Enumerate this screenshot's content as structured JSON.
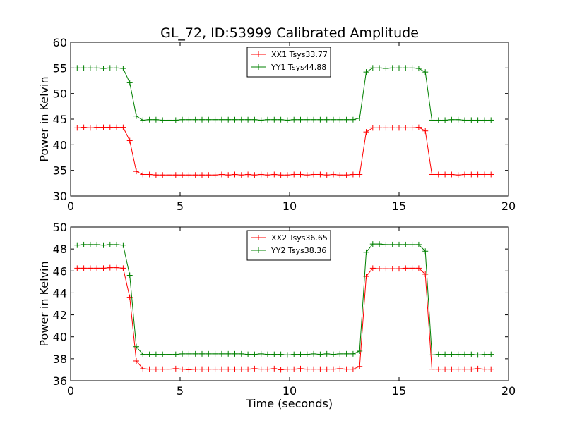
{
  "chart_data": [
    {
      "type": "line",
      "title": "GL_72, ID:53999 Calibrated Amplitude",
      "xlabel": "",
      "ylabel": "Power in Kelvin",
      "xlim": [
        0,
        20
      ],
      "ylim": [
        30,
        60
      ],
      "xticks": [
        0,
        5,
        10,
        15,
        20
      ],
      "yticks": [
        30,
        35,
        40,
        45,
        50,
        55,
        60
      ],
      "legend_position": "top-center",
      "grid": false,
      "x": [
        0.3,
        0.6,
        0.9,
        1.2,
        1.5,
        1.8,
        2.1,
        2.4,
        2.7,
        3.0,
        3.3,
        3.6,
        3.9,
        4.2,
        4.5,
        4.8,
        5.1,
        5.4,
        5.7,
        6.0,
        6.3,
        6.6,
        6.9,
        7.2,
        7.5,
        7.8,
        8.1,
        8.4,
        8.7,
        9.0,
        9.3,
        9.6,
        9.9,
        10.2,
        10.5,
        10.8,
        11.1,
        11.4,
        11.7,
        12.0,
        12.3,
        12.6,
        12.9,
        13.2,
        13.5,
        13.8,
        14.1,
        14.4,
        14.7,
        15.0,
        15.3,
        15.6,
        15.9,
        16.2,
        16.5,
        16.8,
        17.1,
        17.4,
        17.7,
        18.0,
        18.3,
        18.6,
        18.9,
        19.2
      ],
      "series": [
        {
          "name": "XX1 Tsys33.77",
          "color": "#ff0000",
          "values": [
            43.3,
            43.4,
            43.3,
            43.4,
            43.4,
            43.4,
            43.4,
            43.4,
            40.8,
            34.8,
            34.2,
            34.2,
            34.1,
            34.1,
            34.1,
            34.1,
            34.1,
            34.1,
            34.1,
            34.1,
            34.1,
            34.1,
            34.2,
            34.1,
            34.2,
            34.1,
            34.2,
            34.1,
            34.2,
            34.1,
            34.2,
            34.1,
            34.1,
            34.2,
            34.2,
            34.1,
            34.2,
            34.2,
            34.1,
            34.2,
            34.1,
            34.1,
            34.2,
            34.2,
            42.5,
            43.3,
            43.3,
            43.3,
            43.3,
            43.3,
            43.3,
            43.3,
            43.4,
            42.7,
            34.2,
            34.2,
            34.2,
            34.2,
            34.1,
            34.2,
            34.2,
            34.2,
            34.2,
            34.2
          ]
        },
        {
          "name": "YY1 Tsys44.88",
          "color": "#008000",
          "values": [
            55.0,
            55.0,
            55.0,
            55.0,
            54.9,
            55.0,
            55.0,
            54.9,
            52.1,
            45.6,
            44.8,
            44.9,
            44.9,
            44.8,
            44.8,
            44.8,
            44.9,
            44.9,
            44.9,
            44.9,
            44.9,
            44.9,
            44.9,
            44.9,
            44.9,
            44.9,
            44.9,
            44.9,
            44.8,
            44.9,
            44.9,
            44.9,
            44.8,
            44.9,
            44.9,
            44.9,
            44.9,
            44.9,
            44.9,
            44.9,
            44.9,
            44.9,
            44.9,
            45.2,
            54.2,
            55.0,
            55.0,
            54.9,
            55.0,
            55.0,
            55.0,
            55.0,
            54.9,
            54.2,
            44.8,
            44.8,
            44.8,
            44.9,
            44.9,
            44.8,
            44.8,
            44.8,
            44.8,
            44.8
          ]
        }
      ]
    },
    {
      "type": "line",
      "title": "",
      "xlabel": "Time (seconds)",
      "ylabel": "Power in Kelvin",
      "xlim": [
        0,
        20
      ],
      "ylim": [
        36,
        50
      ],
      "xticks": [
        0,
        5,
        10,
        15,
        20
      ],
      "yticks": [
        36,
        38,
        40,
        42,
        44,
        46,
        48,
        50
      ],
      "legend_position": "top-center",
      "grid": false,
      "x": [
        0.3,
        0.6,
        0.9,
        1.2,
        1.5,
        1.8,
        2.1,
        2.4,
        2.7,
        3.0,
        3.3,
        3.6,
        3.9,
        4.2,
        4.5,
        4.8,
        5.1,
        5.4,
        5.7,
        6.0,
        6.3,
        6.6,
        6.9,
        7.2,
        7.5,
        7.8,
        8.1,
        8.4,
        8.7,
        9.0,
        9.3,
        9.6,
        9.9,
        10.2,
        10.5,
        10.8,
        11.1,
        11.4,
        11.7,
        12.0,
        12.3,
        12.6,
        12.9,
        13.2,
        13.5,
        13.8,
        14.1,
        14.4,
        14.7,
        15.0,
        15.3,
        15.6,
        15.9,
        16.2,
        16.5,
        16.8,
        17.1,
        17.4,
        17.7,
        18.0,
        18.3,
        18.6,
        18.9,
        19.2
      ],
      "series": [
        {
          "name": "XX2 Tsys36.65",
          "color": "#ff0000",
          "values": [
            46.25,
            46.25,
            46.25,
            46.25,
            46.25,
            46.3,
            46.3,
            46.25,
            43.6,
            37.8,
            37.1,
            37.05,
            37.05,
            37.05,
            37.05,
            37.1,
            37.05,
            37.0,
            37.05,
            37.05,
            37.05,
            37.05,
            37.05,
            37.05,
            37.05,
            37.05,
            37.05,
            37.1,
            37.05,
            37.05,
            37.1,
            37.0,
            37.05,
            37.05,
            37.1,
            37.05,
            37.05,
            37.05,
            37.05,
            37.05,
            37.1,
            37.05,
            37.05,
            37.3,
            45.5,
            46.25,
            46.2,
            46.2,
            46.2,
            46.2,
            46.25,
            46.25,
            46.25,
            45.7,
            37.05,
            37.05,
            37.05,
            37.05,
            37.05,
            37.05,
            37.05,
            37.1,
            37.05,
            37.05
          ]
        },
        {
          "name": "YY2 Tsys38.36",
          "color": "#008000",
          "values": [
            48.35,
            48.4,
            48.4,
            48.4,
            48.35,
            48.4,
            48.4,
            48.35,
            45.6,
            39.1,
            38.4,
            38.4,
            38.4,
            38.4,
            38.4,
            38.4,
            38.45,
            38.45,
            38.45,
            38.45,
            38.45,
            38.45,
            38.45,
            38.45,
            38.45,
            38.45,
            38.4,
            38.4,
            38.45,
            38.4,
            38.4,
            38.4,
            38.35,
            38.4,
            38.4,
            38.4,
            38.45,
            38.4,
            38.45,
            38.4,
            38.45,
            38.45,
            38.45,
            38.7,
            47.7,
            48.45,
            48.45,
            48.4,
            48.4,
            48.4,
            48.4,
            48.4,
            48.4,
            47.8,
            38.35,
            38.4,
            38.4,
            38.4,
            38.4,
            38.4,
            38.4,
            38.35,
            38.4,
            38.4
          ]
        }
      ]
    }
  ]
}
